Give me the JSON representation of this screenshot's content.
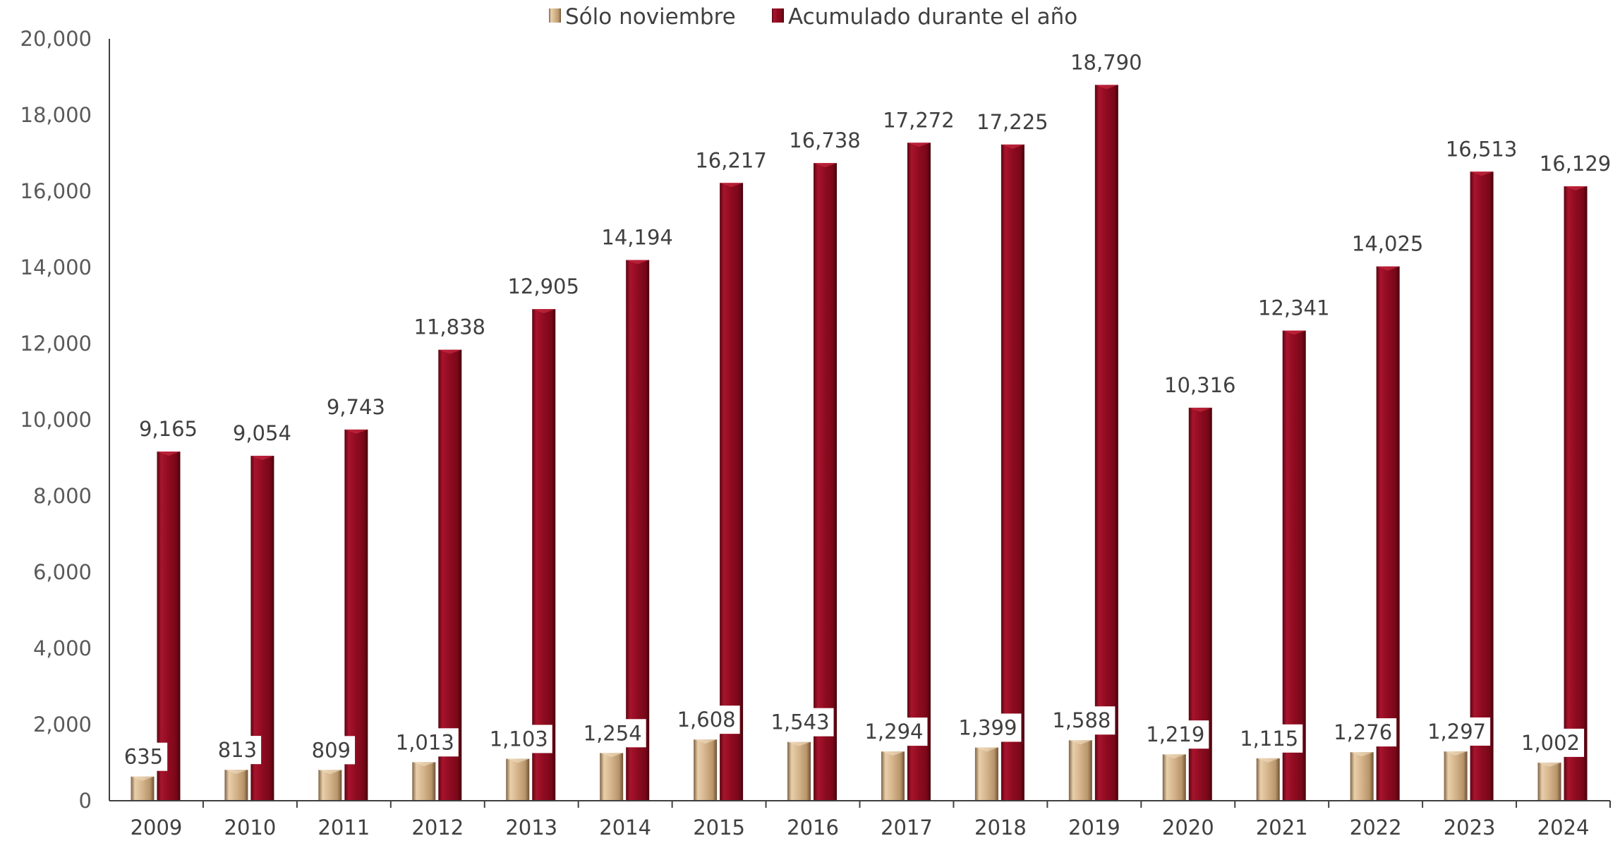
{
  "chart_data": {
    "type": "bar",
    "categories": [
      "2009",
      "2010",
      "2011",
      "2012",
      "2013",
      "2014",
      "2015",
      "2016",
      "2017",
      "2018",
      "2019",
      "2020",
      "2021",
      "2022",
      "2023",
      "2024"
    ],
    "series": [
      {
        "name": "Sólo noviembre",
        "color": "#D2B088",
        "values": [
          635,
          813,
          809,
          1013,
          1103,
          1254,
          1608,
          1543,
          1294,
          1399,
          1588,
          1219,
          1115,
          1276,
          1297,
          1002
        ]
      },
      {
        "name": "Acumulado durante el año",
        "color": "#8E0B20",
        "values": [
          9165,
          9054,
          9743,
          11838,
          12905,
          14194,
          16217,
          16738,
          17272,
          17225,
          18790,
          10316,
          12341,
          14025,
          16513,
          16129
        ]
      }
    ],
    "yticks": [
      "0",
      "2,000",
      "4,000",
      "6,000",
      "8,000",
      "10,000",
      "12,000",
      "14,000",
      "16,000",
      "18,000",
      "20,000"
    ],
    "ylim": [
      0,
      20000
    ],
    "title": "",
    "xlabel": "",
    "ylabel": "",
    "grid": false,
    "legend_position": "top"
  }
}
